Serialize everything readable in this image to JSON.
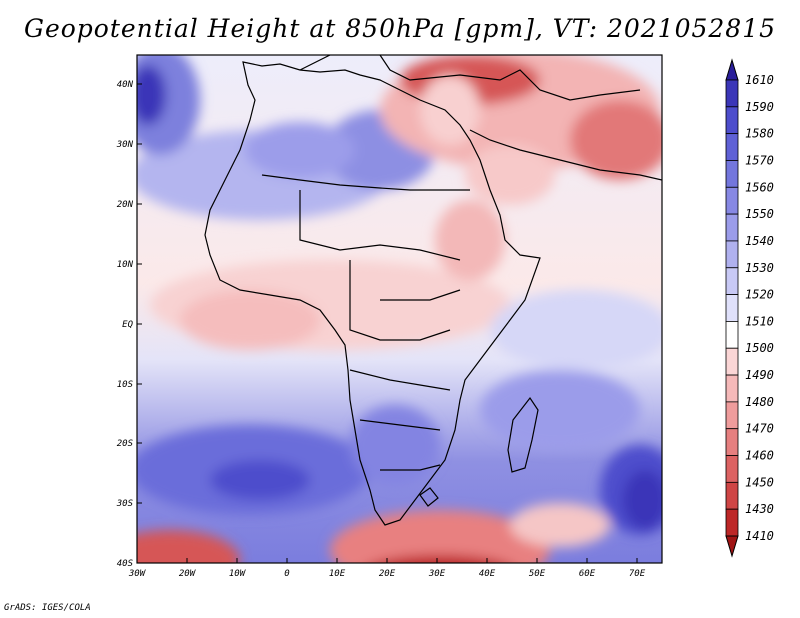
{
  "title": "Geopotential Height at 850hPa [gpm], VT: 2021052815",
  "credit": "GrADS: IGES/COLA",
  "map": {
    "lat_labels": [
      "40N",
      "30N",
      "20N",
      "10N",
      "EQ",
      "10S",
      "20S",
      "30S",
      "40S"
    ],
    "lon_labels": [
      "30W",
      "20W",
      "10W",
      "0",
      "10E",
      "20E",
      "30E",
      "40E",
      "50E",
      "60E",
      "70E"
    ]
  },
  "colorbar": {
    "levels": [
      "1610",
      "1590",
      "1580",
      "1570",
      "1560",
      "1550",
      "1540",
      "1530",
      "1520",
      "1510",
      "1500",
      "1490",
      "1480",
      "1470",
      "1460",
      "1450",
      "1430",
      "1410"
    ],
    "colors": [
      "#2a1e9a",
      "#3b36b8",
      "#4d4dcc",
      "#5f61d6",
      "#7376dd",
      "#8788e4",
      "#9b9cea",
      "#b0b1ef",
      "#c8c9f5",
      "#e0e1fb",
      "#ffffff",
      "#fbd6d6",
      "#f5b9b9",
      "#ef9c9c",
      "#e67f7f",
      "#dc6262",
      "#cf4545",
      "#bd2727",
      "#a01414"
    ]
  }
}
